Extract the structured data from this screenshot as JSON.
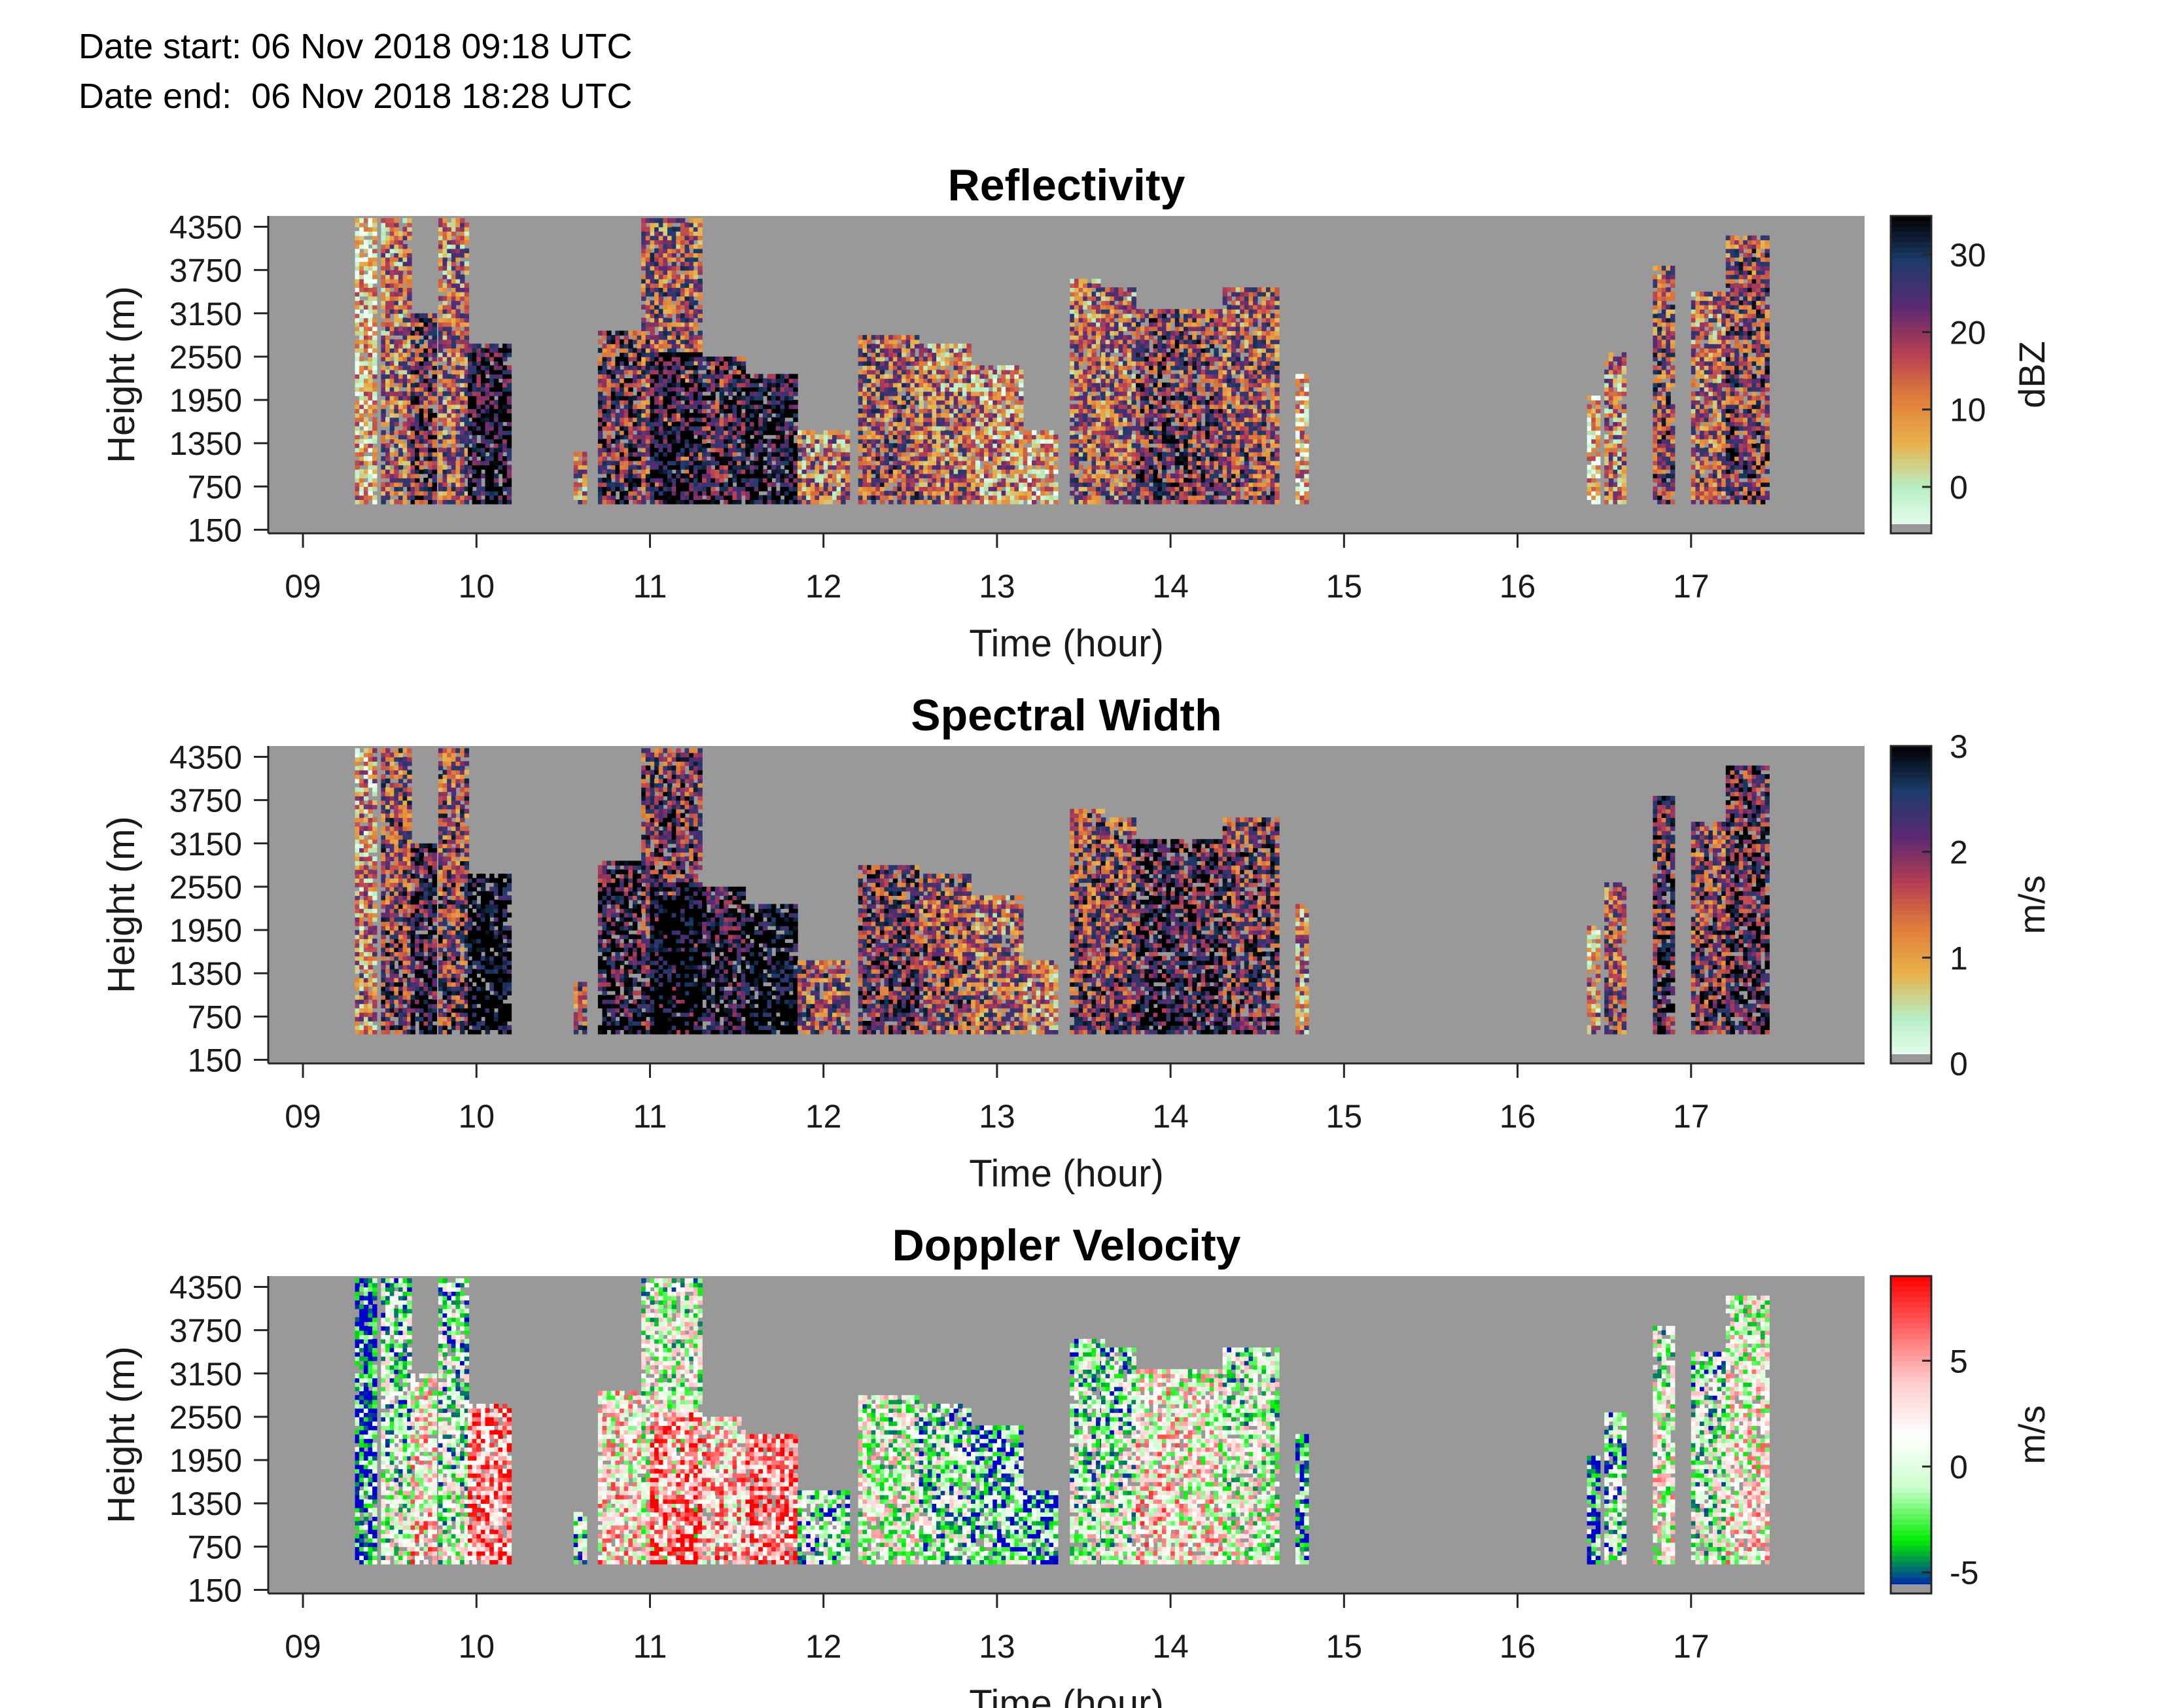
{
  "header": {
    "date_start": "Date start: 06 Nov 2018 09:18 UTC",
    "date_end": "Date end:  06 Nov 2018 18:28 UTC"
  },
  "chart_data": [
    {
      "type": "heatmap",
      "title": "Reflectivity",
      "xlabel": "Time (hour)",
      "ylabel": "Height (m)",
      "xlim": [
        8.8,
        18.0
      ],
      "ylim": [
        100,
        4500
      ],
      "xticks": [
        "09",
        "10",
        "11",
        "12",
        "13",
        "14",
        "15",
        "16",
        "17"
      ],
      "yticks": [
        150,
        750,
        1350,
        1950,
        2550,
        3150,
        3750,
        4350
      ],
      "colorbar": {
        "label": "dBZ",
        "ticks": [
          0,
          10,
          20,
          30
        ],
        "range": [
          -6,
          35
        ]
      },
      "colors": [
        "#f0fff4",
        "#b7efc5",
        "#e9b04a",
        "#e07c3a",
        "#b43d54",
        "#5a2a73",
        "#1d3c6b",
        "#000000"
      ],
      "background": "#999999",
      "value_range": [
        -6,
        35
      ]
    },
    {
      "type": "heatmap",
      "title": "Spectral Width",
      "xlabel": "Time (hour)",
      "ylabel": "Height (m)",
      "xlim": [
        8.8,
        18.0
      ],
      "ylim": [
        100,
        4500
      ],
      "xticks": [
        "09",
        "10",
        "11",
        "12",
        "13",
        "14",
        "15",
        "16",
        "17"
      ],
      "yticks": [
        150,
        750,
        1350,
        1950,
        2550,
        3150,
        3750,
        4350
      ],
      "colorbar": {
        "label": "m/s",
        "ticks": [
          0,
          1,
          2,
          3
        ],
        "range": [
          0,
          3
        ]
      },
      "colors": [
        "#f0fff4",
        "#b7efc5",
        "#e9b04a",
        "#e07c3a",
        "#b43d54",
        "#5a2a73",
        "#1d3c6b",
        "#000000"
      ],
      "background": "#999999",
      "value_range": [
        0,
        3
      ]
    },
    {
      "type": "heatmap",
      "title": "Doppler Velocity",
      "xlabel": "Time (hour)",
      "ylabel": "Height (m)",
      "xlim": [
        8.8,
        18.0
      ],
      "ylim": [
        100,
        4500
      ],
      "xticks": [
        "09",
        "10",
        "11",
        "12",
        "13",
        "14",
        "15",
        "16",
        "17"
      ],
      "yticks": [
        150,
        750,
        1350,
        1950,
        2550,
        3150,
        3750,
        4350
      ],
      "colorbar": {
        "label": "m/s",
        "ticks": [
          -5,
          0,
          5
        ],
        "range": [
          -6,
          9
        ]
      },
      "colors": [
        "#0000cc",
        "#00ee00",
        "#ccffcc",
        "#ffffff",
        "#ffcccc",
        "#ff6666",
        "#ff0000"
      ],
      "background": "#999999",
      "value_range": [
        -6,
        9
      ]
    }
  ]
}
